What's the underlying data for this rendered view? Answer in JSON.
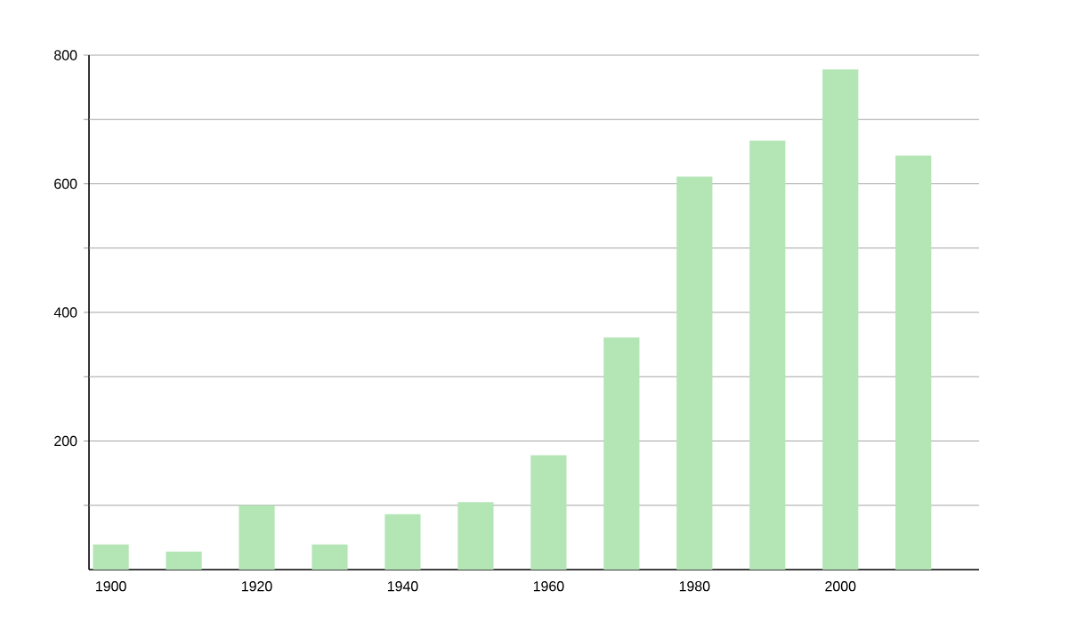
{
  "chart_data": {
    "type": "bar",
    "x": [
      1900,
      1910,
      1920,
      1930,
      1940,
      1950,
      1960,
      1970,
      1980,
      1990,
      2000,
      2010
    ],
    "values": [
      39,
      28,
      100,
      39,
      86,
      105,
      178,
      361,
      611,
      667,
      778,
      644
    ],
    "color": "#b3e5b5",
    "xlim": [
      1897,
      2019
    ],
    "xticks": [
      1900,
      1920,
      1940,
      1960,
      1980,
      2000
    ],
    "ylim": [
      0,
      800
    ],
    "yticks": [
      {
        "value": 100,
        "label": null
      },
      200,
      {
        "value": 300,
        "label": null
      },
      400,
      {
        "value": 500,
        "label": null
      },
      600,
      {
        "value": 700,
        "label": null
      },
      800
    ],
    "grid": "y"
  }
}
